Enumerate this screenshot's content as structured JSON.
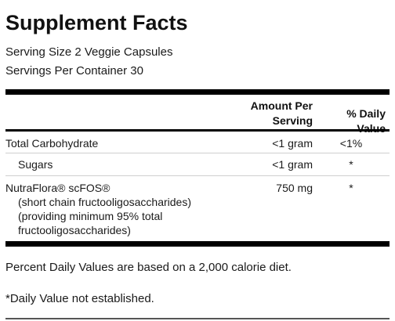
{
  "panel": {
    "title": "Supplement Facts",
    "serving_size": "Serving Size 2 Veggie Capsules",
    "servings_per_container": "Servings Per Container 30"
  },
  "table": {
    "header": {
      "amount_line1": "Amount Per",
      "amount_line2": "Serving",
      "daily_value": "% Daily Value"
    },
    "rows": [
      {
        "name": "Total Carbohydrate",
        "amount": "<1 gram",
        "dv": "<1%"
      },
      {
        "name": "Sugars",
        "amount": "<1 gram",
        "dv": "*"
      },
      {
        "name": "NutraFlora® scFOS®",
        "sub1": "(short chain fructooligosaccharides)",
        "sub2": "(providing minimum 95% total",
        "sub3": "fructooligosaccharides)",
        "amount": "750 mg",
        "dv": "*"
      }
    ]
  },
  "footnotes": {
    "percent_note": "Percent Daily Values are based on a 2,000 calorie diet.",
    "dv_note": "*Daily Value not established."
  }
}
